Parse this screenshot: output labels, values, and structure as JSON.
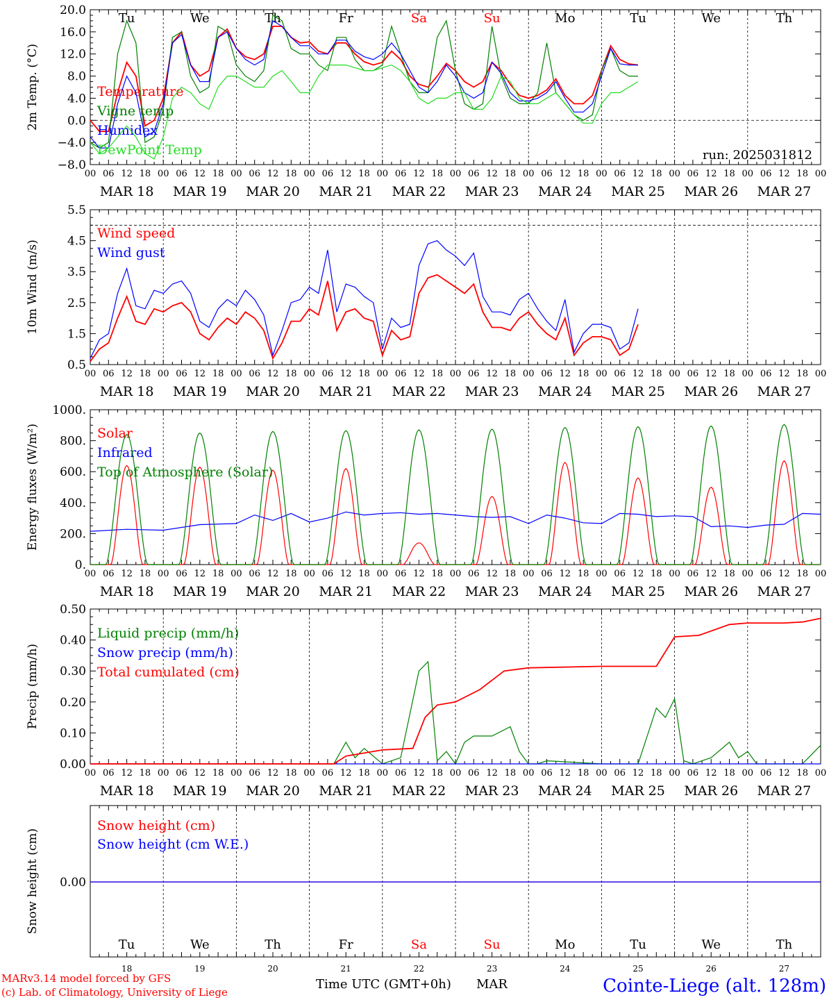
{
  "meta": {
    "title": "Cointe-Liege (alt. 128m)",
    "credit_line1": "MARv3.14 model forced by GFS",
    "credit_line2": "(c) Lab. of Climatology, University of Liege",
    "xlabel": "Time UTC (GMT+0h)",
    "xlabel_month": "MAR",
    "run_label": "run: 2025031812",
    "colors": {
      "red": "#ff0000",
      "green": "#008000",
      "blue": "#0000ff",
      "lightgreen": "#22dd22",
      "axis": "#000000",
      "weekend": "#ff0000"
    }
  },
  "days": {
    "date_labels": [
      "MAR 18",
      "MAR 19",
      "MAR 20",
      "MAR 21",
      "MAR 22",
      "MAR 23",
      "MAR 24",
      "MAR 25",
      "MAR 26",
      "MAR 27"
    ],
    "weekday_labels": [
      "Tu",
      "We",
      "Th",
      "Fr",
      "Sa",
      "Su",
      "Mo",
      "Tu",
      "We",
      "Th"
    ],
    "day_numbers": [
      "18",
      "19",
      "20",
      "21",
      "22",
      "23",
      "24",
      "25",
      "26",
      "27"
    ],
    "weekend_flags": [
      false,
      false,
      false,
      false,
      true,
      true,
      false,
      false,
      false,
      false
    ],
    "hour_ticks": [
      "00",
      "06",
      "12",
      "18"
    ],
    "final_tick": "00"
  },
  "chart_data": [
    {
      "type": "line",
      "ylabel": "2m Temp. (°C)",
      "ylim": [
        -8,
        20
      ],
      "yticks": [
        "20.0",
        "16.0",
        "12.0",
        "8.0",
        "4.0",
        "0.0",
        "−4.0",
        "−8.0"
      ],
      "ytick_values": [
        20,
        16,
        12,
        8,
        4,
        0,
        -4,
        -8
      ],
      "ref_line": 0,
      "x_hours": [
        0,
        3,
        6,
        9,
        12,
        15,
        18,
        21,
        24,
        27,
        30,
        33,
        36,
        39,
        42,
        45,
        48,
        51,
        54,
        57,
        60,
        63,
        66,
        69,
        72,
        75,
        78,
        81,
        84,
        87,
        90,
        93,
        96,
        99,
        102,
        105,
        108,
        111,
        114,
        117,
        120,
        123,
        126,
        129,
        132,
        135,
        138,
        141,
        144,
        147,
        150,
        153,
        156,
        159,
        162,
        165,
        168,
        171,
        174,
        177,
        180,
        183,
        186,
        189,
        192,
        195,
        198,
        201,
        204,
        207,
        210,
        213,
        216,
        219,
        222,
        225,
        228,
        231,
        234,
        237,
        240
      ],
      "series": [
        {
          "name": "Temperature",
          "color": "#ff0000",
          "values": [
            0,
            -2,
            -2,
            5,
            10.5,
            8,
            -1,
            0,
            4,
            14,
            16,
            10,
            8,
            9,
            15,
            16.5,
            13,
            11.5,
            11,
            12,
            17,
            17,
            15,
            14,
            14.2,
            12.5,
            12,
            14,
            14,
            12,
            10.6,
            10,
            10.5,
            12.5,
            11,
            8,
            6.5,
            6,
            8,
            10.3,
            9,
            7,
            6,
            7,
            10.5,
            9,
            6.5,
            4.5,
            4,
            4.5,
            5.5,
            7.5,
            4.5,
            3,
            3,
            4.5,
            9,
            13.5,
            11,
            10.2,
            10
          ]
        },
        {
          "name": "Vigne temp",
          "color": "#008000",
          "values": [
            -4,
            -5,
            -4,
            12,
            18,
            14,
            -4,
            -3,
            2,
            15,
            16,
            8,
            5,
            6,
            17,
            16,
            10,
            8,
            7,
            9,
            19,
            18,
            13,
            12,
            12,
            10,
            9,
            15,
            15,
            11,
            9,
            9,
            10,
            17,
            12,
            7,
            5,
            5,
            15,
            18,
            9,
            3,
            2,
            3,
            17,
            8,
            4,
            3,
            3,
            5,
            14,
            5,
            3,
            1,
            0,
            1,
            9,
            13,
            9,
            8,
            8
          ]
        },
        {
          "name": "Humidex",
          "color": "#0000ff",
          "values": [
            -3,
            -5,
            -5,
            3,
            8,
            5,
            -3,
            -2,
            3,
            14,
            15.5,
            10,
            7,
            7,
            15,
            16,
            13,
            11,
            10,
            11,
            18,
            17,
            15,
            13.5,
            13.5,
            12,
            12,
            14.5,
            14.5,
            12.5,
            11.5,
            11,
            12,
            14,
            12,
            9,
            6,
            5,
            7,
            10,
            8,
            5,
            4,
            5,
            10.5,
            8.5,
            5,
            3.5,
            3.5,
            4,
            5,
            7,
            4,
            1.5,
            1.5,
            3,
            8,
            13,
            10.2,
            10,
            10
          ]
        },
        {
          "name": "DewPoint Temp",
          "color": "#22dd22",
          "values": [
            -4,
            -6,
            -5,
            -3,
            -1,
            -3,
            -6,
            -7,
            -3,
            4,
            6,
            5,
            3,
            2,
            6,
            8,
            8,
            7,
            6,
            6,
            8,
            9,
            7,
            5,
            5,
            8,
            10,
            10,
            10,
            9.5,
            9,
            9,
            9.5,
            10,
            9,
            7,
            4,
            3,
            4,
            4,
            5,
            5,
            2,
            2,
            4,
            8,
            7,
            4,
            3,
            3,
            4,
            5,
            3,
            1,
            -0.5,
            -0.5,
            3,
            5,
            5,
            6,
            7
          ]
        }
      ]
    },
    {
      "type": "line",
      "ylabel": "10m Wind (m/s)",
      "ylim": [
        0.5,
        5.5
      ],
      "yticks": [
        "5.5",
        "4.5",
        "3.5",
        "2.5",
        "1.5",
        "0.5"
      ],
      "ytick_values": [
        5.5,
        4.5,
        3.5,
        2.5,
        1.5,
        0.5
      ],
      "ref_line": 5,
      "x_hours": [
        0,
        3,
        6,
        9,
        12,
        15,
        18,
        21,
        24,
        27,
        30,
        33,
        36,
        39,
        42,
        45,
        48,
        51,
        54,
        57,
        60,
        63,
        66,
        69,
        72,
        75,
        78,
        81,
        84,
        87,
        90,
        93,
        96,
        99,
        102,
        105,
        108,
        111,
        114,
        117,
        120,
        123,
        126,
        129,
        132,
        135,
        138,
        141,
        144,
        147,
        150,
        153,
        156,
        159,
        162,
        165,
        168,
        171,
        174,
        177,
        180,
        183,
        186,
        189,
        192,
        195,
        198,
        201,
        204,
        207,
        210,
        213,
        216,
        219,
        222,
        225,
        228,
        231,
        234,
        237,
        240
      ],
      "series": [
        {
          "name": "Wind speed",
          "color": "#ff0000",
          "values": [
            0.6,
            1.0,
            1.2,
            2.0,
            2.7,
            1.9,
            1.8,
            2.3,
            2.2,
            2.4,
            2.5,
            2.2,
            1.5,
            1.3,
            1.7,
            2.0,
            1.8,
            2.2,
            2.0,
            1.6,
            0.7,
            1.2,
            1.9,
            1.9,
            2.3,
            2.1,
            3.2,
            1.6,
            2.2,
            2.3,
            2.0,
            1.9,
            0.8,
            1.6,
            1.3,
            1.4,
            2.8,
            3.3,
            3.4,
            3.2,
            3.0,
            2.8,
            3.1,
            2.2,
            1.7,
            1.7,
            1.6,
            2.0,
            2.2,
            1.8,
            1.5,
            1.3,
            2.0,
            0.8,
            1.2,
            1.4,
            1.4,
            1.3,
            0.8,
            1.0,
            1.8
          ]
        },
        {
          "name": "Wind gust",
          "color": "#0000ff",
          "values": [
            0.7,
            1.3,
            1.5,
            2.8,
            3.6,
            2.4,
            2.3,
            2.9,
            2.8,
            3.1,
            3.2,
            2.8,
            1.9,
            1.7,
            2.3,
            2.6,
            2.4,
            2.9,
            2.6,
            2.1,
            0.8,
            1.6,
            2.5,
            2.6,
            3.0,
            2.8,
            4.2,
            2.2,
            3.1,
            3.0,
            2.7,
            2.5,
            1.0,
            2.0,
            1.7,
            1.8,
            3.7,
            4.4,
            4.5,
            4.2,
            4.0,
            3.7,
            4.1,
            2.7,
            2.2,
            2.2,
            2.1,
            2.6,
            2.8,
            2.3,
            1.9,
            1.6,
            2.6,
            0.9,
            1.5,
            1.8,
            1.8,
            1.7,
            1.0,
            1.2,
            2.3
          ]
        }
      ]
    },
    {
      "type": "line",
      "ylabel": "Energy fluxes (W/m²)",
      "ylim": [
        0,
        1000
      ],
      "yticks": [
        "1000.",
        "800.",
        "600.",
        "400.",
        "200.",
        "0."
      ],
      "ytick_values": [
        1000,
        800,
        600,
        400,
        200,
        0
      ],
      "series": [
        {
          "name": "Solar",
          "color": "#ff0000",
          "peaks": [
            640,
            630,
            610,
            620,
            140,
            440,
            660,
            560,
            500,
            670
          ]
        },
        {
          "name": "Infrared",
          "color": "#0000ff",
          "x_hours": [
            0,
            12,
            24,
            36,
            48,
            54,
            60,
            66,
            72,
            78,
            84,
            90,
            96,
            102,
            108,
            114,
            120,
            126,
            132,
            138,
            144,
            150,
            156,
            162,
            168,
            174,
            180,
            186,
            192,
            198,
            204,
            210,
            216,
            222,
            228,
            234,
            240
          ],
          "values": [
            215,
            228,
            222,
            258,
            265,
            320,
            285,
            330,
            275,
            300,
            340,
            320,
            330,
            335,
            325,
            330,
            320,
            310,
            305,
            310,
            265,
            320,
            300,
            270,
            265,
            330,
            325,
            310,
            315,
            310,
            245,
            250,
            240,
            255,
            260,
            330,
            325
          ]
        },
        {
          "name": "Top of Atmosphere (Solar)",
          "color": "#008000",
          "peaks": [
            840,
            850,
            860,
            865,
            870,
            875,
            885,
            890,
            895,
            905
          ]
        }
      ]
    },
    {
      "type": "line",
      "ylabel": "Precip (mm/h)",
      "ylim": [
        0,
        0.5
      ],
      "yticks": [
        "0.50",
        "0.40",
        "0.30",
        "0.20",
        "0.10",
        "0.00"
      ],
      "ytick_values": [
        0.5,
        0.4,
        0.3,
        0.2,
        0.1,
        0.0
      ],
      "series": [
        {
          "name": "Liquid precip (mm/h)",
          "color": "#008000",
          "x_hours": [
            0,
            80,
            84,
            87,
            90,
            96,
            102,
            108,
            111,
            114,
            117,
            120,
            123,
            126,
            132,
            138,
            141,
            144,
            147,
            150,
            168,
            180,
            186,
            189,
            192,
            195,
            198,
            204,
            210,
            213,
            216,
            219,
            222,
            228,
            234,
            237,
            240
          ],
          "values": [
            0,
            0,
            0.07,
            0.02,
            0.05,
            0,
            0.02,
            0.3,
            0.33,
            0.01,
            0.04,
            0,
            0.07,
            0.09,
            0.09,
            0.12,
            0.04,
            0,
            0,
            0.01,
            0,
            0,
            0.18,
            0.15,
            0.21,
            0.01,
            0,
            0.02,
            0.07,
            0.02,
            0.04,
            0,
            0,
            0,
            0,
            0.03,
            0.06
          ]
        },
        {
          "name": "Snow precip (mm/h)",
          "color": "#0000ff",
          "values": [
            0,
            0
          ]
        },
        {
          "name": "Total cumulated (cm)",
          "color": "#ff0000",
          "x_hours": [
            0,
            80,
            84,
            96,
            106,
            110,
            114,
            120,
            128,
            136,
            144,
            168,
            186,
            192,
            200,
            210,
            216,
            228,
            234,
            240
          ],
          "values": [
            0,
            0,
            0.025,
            0.045,
            0.05,
            0.15,
            0.19,
            0.2,
            0.24,
            0.3,
            0.31,
            0.315,
            0.315,
            0.41,
            0.415,
            0.45,
            0.455,
            0.455,
            0.458,
            0.47
          ]
        }
      ]
    },
    {
      "type": "line",
      "ylabel": "Snow height (cm)",
      "yticks": [
        "0.00"
      ],
      "series": [
        {
          "name": "Snow height (cm)",
          "color": "#ff0000",
          "values": [
            0,
            0
          ]
        },
        {
          "name": "Snow height (cm W.E.)",
          "color": "#0000ff",
          "values": [
            0,
            0
          ]
        }
      ]
    }
  ]
}
